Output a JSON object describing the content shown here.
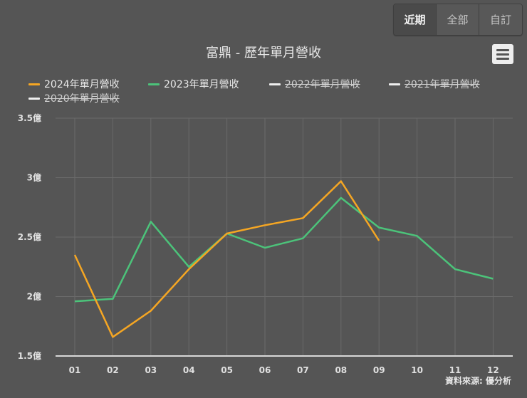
{
  "range_selector": {
    "buttons": [
      {
        "label": "近期",
        "active": true
      },
      {
        "label": "全部",
        "active": false
      },
      {
        "label": "自訂",
        "active": false
      }
    ]
  },
  "chart": {
    "title": "富鼎 - 歷年單月營收",
    "menu_icon": "hamburger-menu-icon",
    "credit": "資料來源: 優分析"
  },
  "legend": [
    {
      "label": "2024年單月營收",
      "color": "#f5a623",
      "visible": true
    },
    {
      "label": "2023年單月營收",
      "color": "#4cc37a",
      "visible": true
    },
    {
      "label": "2022年單月營收",
      "color": "#eeeeee",
      "visible": false
    },
    {
      "label": "2021年單月營收",
      "color": "#eeeeee",
      "visible": false
    },
    {
      "label": "2020年單月營收",
      "color": "#eeeeee",
      "visible": false
    }
  ],
  "chart_data": {
    "type": "line",
    "title": "富鼎 - 歷年單月營收",
    "xlabel": "",
    "ylabel": "",
    "categories": [
      "01",
      "02",
      "03",
      "04",
      "05",
      "06",
      "07",
      "08",
      "09",
      "10",
      "11",
      "12"
    ],
    "y_ticks": [
      "1.5億",
      "2億",
      "2.5億",
      "3億",
      "3.5億"
    ],
    "y_tick_values": [
      1.5,
      2,
      2.5,
      3,
      3.5
    ],
    "ylim": [
      1.5,
      3.5
    ],
    "unit": "億",
    "grid": true,
    "legend_position": "top",
    "series": [
      {
        "name": "2024年單月營收",
        "color": "#f5a623",
        "visible": true,
        "values": [
          2.35,
          1.66,
          1.88,
          2.23,
          2.53,
          2.6,
          2.66,
          2.97,
          2.47,
          null,
          null,
          null
        ]
      },
      {
        "name": "2023年單月營收",
        "color": "#4cc37a",
        "visible": true,
        "values": [
          1.96,
          1.98,
          2.63,
          2.25,
          2.53,
          2.41,
          2.49,
          2.83,
          2.58,
          2.51,
          2.23,
          2.15
        ]
      },
      {
        "name": "2022年單月營收",
        "visible": false,
        "values": []
      },
      {
        "name": "2021年單月營收",
        "visible": false,
        "values": []
      },
      {
        "name": "2020年單月營收",
        "visible": false,
        "values": []
      }
    ],
    "annotations": [
      "資料來源: 優分析"
    ]
  }
}
